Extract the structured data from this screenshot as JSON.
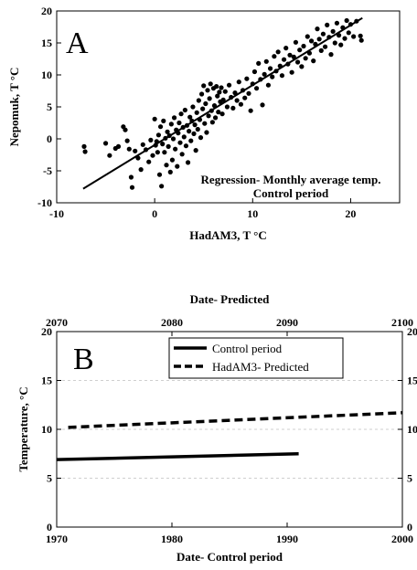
{
  "chart_data": [
    {
      "type": "scatter",
      "panel_label": "A",
      "xlabel": "HadAM3, T °C",
      "ylabel": "Nepomuk, T °C",
      "xlim": [
        -10,
        25
      ],
      "ylim": [
        -10,
        20
      ],
      "x_ticks": [
        -10,
        0,
        10,
        20
      ],
      "y_ticks": [
        -10,
        -5,
        0,
        5,
        10,
        15,
        20
      ],
      "annotation_lines": [
        "Regression- Monthly average temp.",
        "Control period"
      ],
      "regression_line": {
        "x": [
          -7.3,
          21.2
        ],
        "y": [
          -7.8,
          18.9
        ]
      },
      "series": [
        {
          "name": "",
          "points": [
            [
              -7.2,
              -1.2
            ],
            [
              -7.1,
              -2.0
            ],
            [
              -5.0,
              -0.7
            ],
            [
              -4.6,
              -2.6
            ],
            [
              -4.0,
              -1.5
            ],
            [
              -3.7,
              -1.2
            ],
            [
              -3.2,
              1.9
            ],
            [
              -3.0,
              1.4
            ],
            [
              -2.8,
              -0.3
            ],
            [
              -2.6,
              -1.6
            ],
            [
              -2.4,
              -6.0
            ],
            [
              -2.3,
              -7.6
            ],
            [
              -2.0,
              -1.9
            ],
            [
              -1.7,
              -3.0
            ],
            [
              -1.4,
              -4.8
            ],
            [
              -1.2,
              -0.9
            ],
            [
              -0.9,
              -1.7
            ],
            [
              -0.6,
              -3.6
            ],
            [
              -0.4,
              -0.2
            ],
            [
              -0.2,
              -2.6
            ],
            [
              0.0,
              3.1
            ],
            [
              0.1,
              -1.0
            ],
            [
              0.2,
              -0.4
            ],
            [
              0.3,
              -2.1
            ],
            [
              0.4,
              0.6
            ],
            [
              0.5,
              -5.6
            ],
            [
              0.6,
              1.9
            ],
            [
              0.7,
              -7.4
            ],
            [
              0.8,
              -0.8
            ],
            [
              0.9,
              2.8
            ],
            [
              1.0,
              -2.1
            ],
            [
              1.1,
              0.1
            ],
            [
              1.2,
              -4.1
            ],
            [
              1.3,
              1.1
            ],
            [
              1.4,
              -1.2
            ],
            [
              1.5,
              0.5
            ],
            [
              1.6,
              -5.2
            ],
            [
              1.7,
              2.3
            ],
            [
              1.8,
              -3.3
            ],
            [
              1.9,
              0.0
            ],
            [
              2.0,
              3.3
            ],
            [
              2.1,
              -1.6
            ],
            [
              2.2,
              1.4
            ],
            [
              2.3,
              -4.3
            ],
            [
              2.4,
              0.9
            ],
            [
              2.5,
              2.5
            ],
            [
              2.6,
              -0.6
            ],
            [
              2.7,
              3.9
            ],
            [
              2.8,
              -2.4
            ],
            [
              2.9,
              1.8
            ],
            [
              3.0,
              0.3
            ],
            [
              3.1,
              4.5
            ],
            [
              3.2,
              -1.1
            ],
            [
              3.3,
              2.1
            ],
            [
              3.4,
              -3.7
            ],
            [
              3.5,
              1.2
            ],
            [
              3.6,
              3.4
            ],
            [
              3.7,
              -0.3
            ],
            [
              3.8,
              2.8
            ],
            [
              3.9,
              5.0
            ],
            [
              4.0,
              0.8
            ],
            [
              4.1,
              2.2
            ],
            [
              4.2,
              -1.8
            ],
            [
              4.3,
              4.1
            ],
            [
              4.4,
              1.5
            ],
            [
              4.5,
              6.0
            ],
            [
              4.6,
              3.0
            ],
            [
              4.7,
              0.2
            ],
            [
              4.8,
              7.0
            ],
            [
              4.9,
              4.7
            ],
            [
              5.0,
              8.3
            ],
            [
              5.1,
              2.4
            ],
            [
              5.2,
              5.5
            ],
            [
              5.3,
              1.0
            ],
            [
              5.4,
              7.6
            ],
            [
              5.5,
              3.6
            ],
            [
              5.6,
              6.3
            ],
            [
              5.7,
              8.6
            ],
            [
              5.8,
              4.4
            ],
            [
              5.9,
              2.6
            ],
            [
              6.0,
              7.9
            ],
            [
              6.1,
              5.2
            ],
            [
              6.2,
              3.3
            ],
            [
              6.3,
              8.2
            ],
            [
              6.4,
              6.7
            ],
            [
              6.5,
              4.2
            ],
            [
              6.6,
              7.3
            ],
            [
              6.7,
              5.8
            ],
            [
              6.8,
              8.0
            ],
            [
              6.9,
              3.9
            ],
            [
              7.0,
              6.1
            ],
            [
              7.2,
              7.4
            ],
            [
              7.4,
              5.0
            ],
            [
              7.6,
              8.4
            ],
            [
              7.8,
              6.5
            ],
            [
              8.0,
              4.8
            ],
            [
              8.2,
              7.2
            ],
            [
              8.4,
              6.0
            ],
            [
              8.6,
              8.9
            ],
            [
              8.8,
              5.4
            ],
            [
              9.0,
              7.6
            ],
            [
              9.2,
              6.4
            ],
            [
              9.4,
              9.4
            ],
            [
              9.6,
              7.1
            ],
            [
              9.8,
              4.4
            ],
            [
              10.0,
              8.6
            ],
            [
              10.2,
              10.5
            ],
            [
              10.4,
              7.9
            ],
            [
              10.6,
              11.8
            ],
            [
              10.8,
              9.3
            ],
            [
              11.0,
              5.3
            ],
            [
              11.2,
              10.1
            ],
            [
              11.4,
              12.1
            ],
            [
              11.6,
              8.4
            ],
            [
              11.8,
              11.0
            ],
            [
              12.0,
              9.7
            ],
            [
              12.2,
              12.9
            ],
            [
              12.4,
              10.6
            ],
            [
              12.6,
              13.6
            ],
            [
              12.8,
              11.4
            ],
            [
              13.0,
              9.9
            ],
            [
              13.2,
              12.4
            ],
            [
              13.4,
              14.2
            ],
            [
              13.6,
              11.7
            ],
            [
              13.8,
              13.1
            ],
            [
              14.0,
              10.4
            ],
            [
              14.2,
              12.8
            ],
            [
              14.4,
              15.1
            ],
            [
              14.6,
              12.0
            ],
            [
              14.8,
              13.9
            ],
            [
              15.0,
              11.3
            ],
            [
              15.2,
              14.5
            ],
            [
              15.4,
              12.6
            ],
            [
              15.6,
              16.0
            ],
            [
              15.8,
              13.4
            ],
            [
              16.0,
              15.3
            ],
            [
              16.2,
              12.2
            ],
            [
              16.4,
              14.8
            ],
            [
              16.6,
              17.2
            ],
            [
              16.8,
              15.6
            ],
            [
              17.0,
              13.8
            ],
            [
              17.2,
              16.4
            ],
            [
              17.4,
              14.4
            ],
            [
              17.6,
              17.8
            ],
            [
              17.8,
              15.9
            ],
            [
              18.0,
              13.2
            ],
            [
              18.2,
              16.8
            ],
            [
              18.4,
              15.0
            ],
            [
              18.6,
              18.1
            ],
            [
              18.8,
              16.2
            ],
            [
              19.0,
              14.7
            ],
            [
              19.2,
              17.4
            ],
            [
              19.4,
              15.7
            ],
            [
              19.6,
              18.5
            ],
            [
              19.8,
              16.6
            ],
            [
              20.0,
              17.9
            ],
            [
              20.3,
              16.0
            ],
            [
              20.6,
              18.4
            ],
            [
              21.0,
              16.1
            ],
            [
              21.1,
              15.4
            ]
          ]
        }
      ]
    },
    {
      "type": "line",
      "panel_label": "B",
      "title": "Date- Predicted",
      "xlabel": "Date- Control period",
      "ylabel": "Temperature, °C",
      "xlim": [
        1970,
        2000
      ],
      "x2lim": [
        2070,
        2100
      ],
      "ylim": [
        0,
        20
      ],
      "x_ticks": [
        1970,
        1980,
        1990,
        2000
      ],
      "x2_ticks": [
        2070,
        2080,
        2090,
        2100
      ],
      "y_ticks": [
        0,
        5,
        10,
        15,
        20
      ],
      "grid": "horizontal",
      "legend_position": "top",
      "series": [
        {
          "name": "Control period",
          "style": "solid",
          "x": [
            1970,
            1991
          ],
          "y": [
            6.9,
            7.5
          ]
        },
        {
          "name": "HadAM3- Predicted",
          "style": "dashed",
          "x": [
            1971,
            2000
          ],
          "y": [
            10.2,
            11.7
          ]
        }
      ]
    }
  ]
}
